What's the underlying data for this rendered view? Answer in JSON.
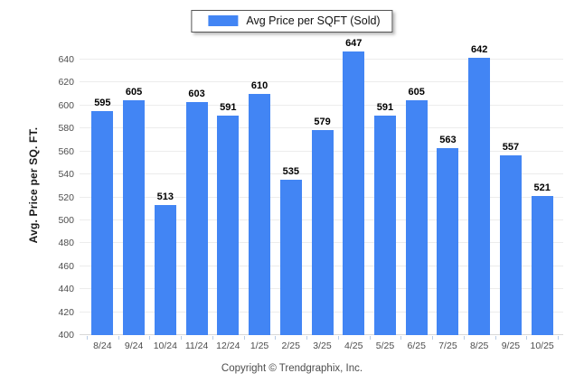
{
  "legend": {
    "label": "Avg Price per SQFT (Sold)"
  },
  "footer": {
    "copyright": "Copyright © Trendgraphix, Inc."
  },
  "colors": {
    "bar": "#4285f4",
    "gridline": "#ececec",
    "baseline": "#d9d9d9",
    "tick": "#b9cde6",
    "axis_text": "#4d4d4d",
    "value_label": "#000000",
    "legend_border": "#555555",
    "background": "#ffffff"
  },
  "chart_data": {
    "type": "bar",
    "title": "",
    "xlabel": "",
    "ylabel": "Avg. Price per SQ. FT.",
    "series_name": "Avg Price per SQFT (Sold)",
    "categories": [
      "8/24",
      "9/24",
      "10/24",
      "11/24",
      "12/24",
      "1/25",
      "2/25",
      "3/25",
      "4/25",
      "5/25",
      "6/25",
      "7/25",
      "8/25",
      "9/25",
      "10/25"
    ],
    "values": [
      595,
      605,
      513,
      603,
      591,
      610,
      535,
      579,
      647,
      591,
      605,
      563,
      642,
      557,
      521
    ],
    "ylim": [
      400,
      647
    ],
    "yticks": [
      400,
      420,
      440,
      460,
      480,
      500,
      520,
      540,
      560,
      580,
      600,
      620,
      640
    ],
    "grid": true,
    "value_labels": true,
    "legend_position": "top-center"
  }
}
